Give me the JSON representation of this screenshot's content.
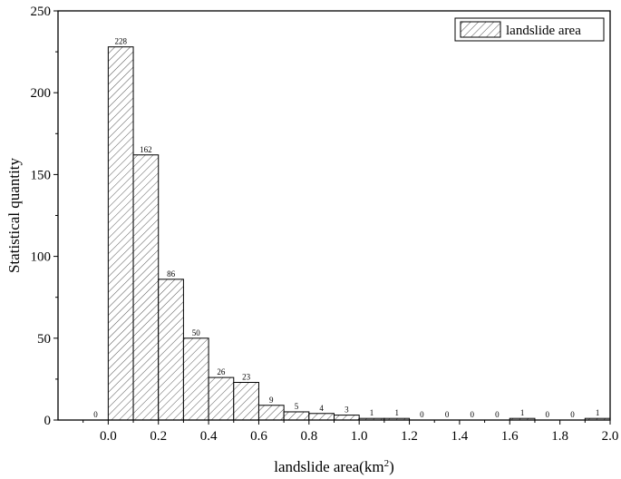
{
  "chart_data": {
    "type": "bar",
    "bin_width": 0.1,
    "x_left": [
      -0.1,
      0.0,
      0.1,
      0.2,
      0.3,
      0.4,
      0.5,
      0.6,
      0.7,
      0.8,
      0.9,
      1.0,
      1.1,
      1.2,
      1.3,
      1.4,
      1.5,
      1.6,
      1.7,
      1.8,
      1.9
    ],
    "values": [
      0,
      228,
      162,
      86,
      50,
      26,
      23,
      9,
      5,
      4,
      3,
      1,
      1,
      0,
      0,
      0,
      0,
      1,
      0,
      0,
      1
    ],
    "xlim": [
      -0.2,
      2.0
    ],
    "ylim": [
      0,
      250
    ],
    "xticks": [
      "0.0",
      "0.2",
      "0.4",
      "0.6",
      "0.8",
      "1.0",
      "1.2",
      "1.4",
      "1.6",
      "1.8",
      "2.0"
    ],
    "yticks": [
      "0",
      "50",
      "100",
      "150",
      "200",
      "250"
    ],
    "xlabel": "landslide area(km",
    "xlabel_sup": "2",
    "xlabel_suffix": ")",
    "ylabel": "Statistical quantity",
    "legend": {
      "label": "landslide area",
      "position": "top-right"
    },
    "series": [
      {
        "name": "landslide area",
        "pattern": "diagonal-hatch"
      }
    ],
    "grid": false
  }
}
